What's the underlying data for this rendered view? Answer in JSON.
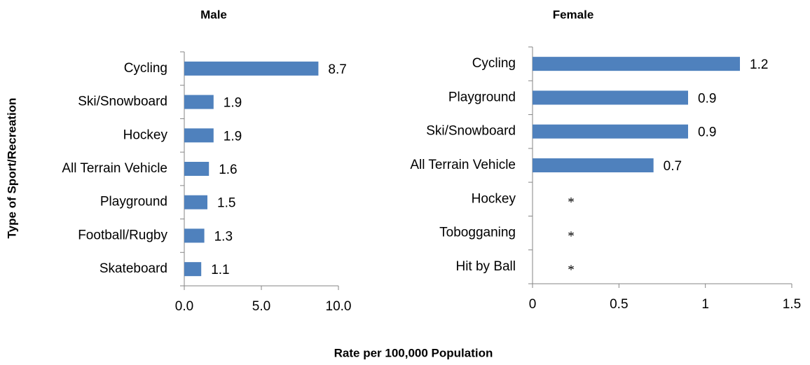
{
  "chart_data": [
    {
      "type": "bar",
      "orientation": "horizontal",
      "title": "Male",
      "color": "#4f81bd",
      "categories": [
        "Cycling",
        "Ski/Snowboard",
        "Hockey",
        "All Terrain Vehicle",
        "Playground",
        "Football/Rugby",
        "Skateboard"
      ],
      "values": [
        8.7,
        1.9,
        1.9,
        1.6,
        1.5,
        1.3,
        1.1
      ],
      "xlim": [
        0,
        10
      ],
      "xticks": [
        {
          "value": 0,
          "label": "0.0"
        },
        {
          "value": 5,
          "label": "5.0"
        },
        {
          "value": 10,
          "label": "10.0"
        }
      ]
    },
    {
      "type": "bar",
      "orientation": "horizontal",
      "title": "Female",
      "color": "#4f81bd",
      "categories": [
        "Cycling",
        "Playground",
        "Ski/Snowboard",
        "All Terrain Vehicle",
        "Hockey",
        "Tobogganing",
        "Hit by Ball"
      ],
      "values": [
        1.2,
        0.9,
        0.9,
        0.7,
        null,
        null,
        null
      ],
      "value_labels": [
        "1.2",
        "0.9",
        "0.9",
        "0.7",
        "*",
        "*",
        "*"
      ],
      "xlim": [
        0,
        1.5
      ],
      "xticks": [
        0,
        0.5,
        1,
        1.5
      ]
    }
  ],
  "xlabel": "Rate per 100,000 Population",
  "ylabel": "Type of Sport/Recreation"
}
